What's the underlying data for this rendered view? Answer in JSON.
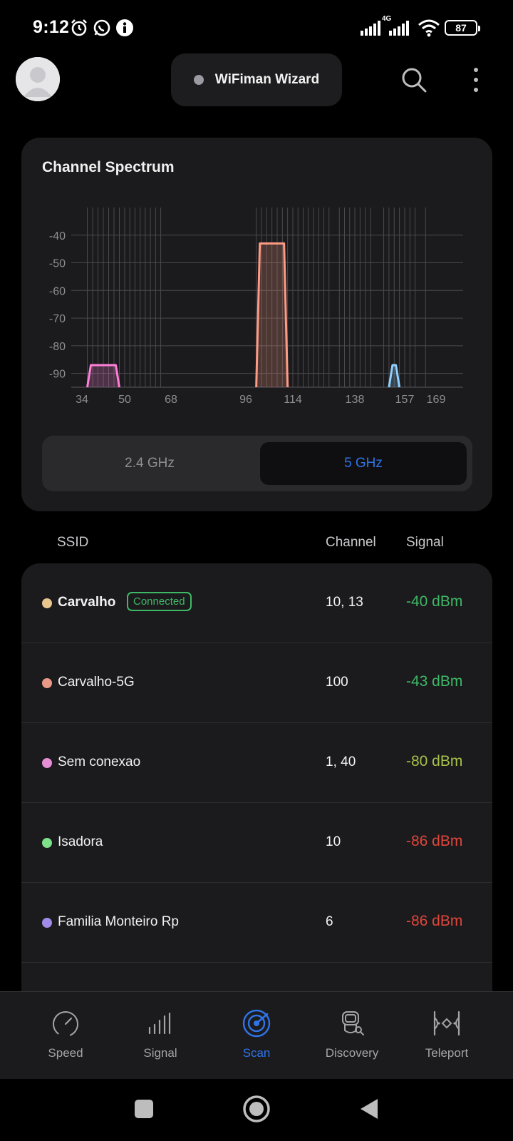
{
  "status_bar": {
    "time": "9:12",
    "network_label": "4G",
    "battery": "87"
  },
  "header": {
    "app_title": "WiFiman Wizard"
  },
  "spectrum": {
    "title": "Channel Spectrum",
    "band_options": [
      "2.4 GHz",
      "5 GHz"
    ],
    "selected_band": "5 GHz"
  },
  "chart_data": {
    "type": "area",
    "title": "Channel Spectrum",
    "xlabel": "",
    "ylabel": "",
    "x_ticks": [
      "34",
      "50",
      "68",
      "96",
      "114",
      "138",
      "157",
      "169"
    ],
    "y_ticks": [
      "-40",
      "-50",
      "-60",
      "-70",
      "-80",
      "-90"
    ],
    "ylim": [
      -95,
      -30
    ],
    "grid": true,
    "series": [
      {
        "name": "Sem conexao",
        "channel": 40,
        "bandwidth_channels": [
          36,
          48
        ],
        "signal_dbm": -87,
        "color": "#ff7fd9"
      },
      {
        "name": "Carvalho-5G",
        "channel": 100,
        "bandwidth_channels": [
          100,
          112
        ],
        "signal_dbm": -43,
        "color": "#ff9a84"
      },
      {
        "name": "",
        "channel": 153,
        "bandwidth_channels": [
          151,
          155
        ],
        "signal_dbm": -87,
        "color": "#8fd0ff"
      }
    ]
  },
  "table": {
    "headers": {
      "ssid": "SSID",
      "channel": "Channel",
      "signal": "Signal"
    },
    "connected_label": "Connected",
    "rows": [
      {
        "ssid": "Carvalho",
        "channel": "10, 13",
        "signal": "-40 dBm",
        "dot_color": "#e9c590",
        "signal_color": "#3fb866",
        "connected": true
      },
      {
        "ssid": "Carvalho-5G",
        "channel": "100",
        "signal": "-43 dBm",
        "dot_color": "#e89a86",
        "signal_color": "#3fb866",
        "connected": false
      },
      {
        "ssid": "Sem conexao",
        "channel": "1, 40",
        "signal": "-80 dBm",
        "dot_color": "#e58ed6",
        "signal_color": "#a7c24a",
        "connected": false
      },
      {
        "ssid": "Isadora",
        "channel": "10",
        "signal": "-86 dBm",
        "dot_color": "#7fe08a",
        "signal_color": "#e0463c",
        "connected": false
      },
      {
        "ssid": "Familia Monteiro Rp",
        "channel": "6",
        "signal": "-86 dBm",
        "dot_color": "#a08ce8",
        "signal_color": "#e0463c",
        "connected": false
      }
    ]
  },
  "bottom_nav": {
    "items": [
      "Speed",
      "Signal",
      "Scan",
      "Discovery",
      "Teleport"
    ],
    "active": "Scan",
    "active_color": "#2f74e8"
  }
}
